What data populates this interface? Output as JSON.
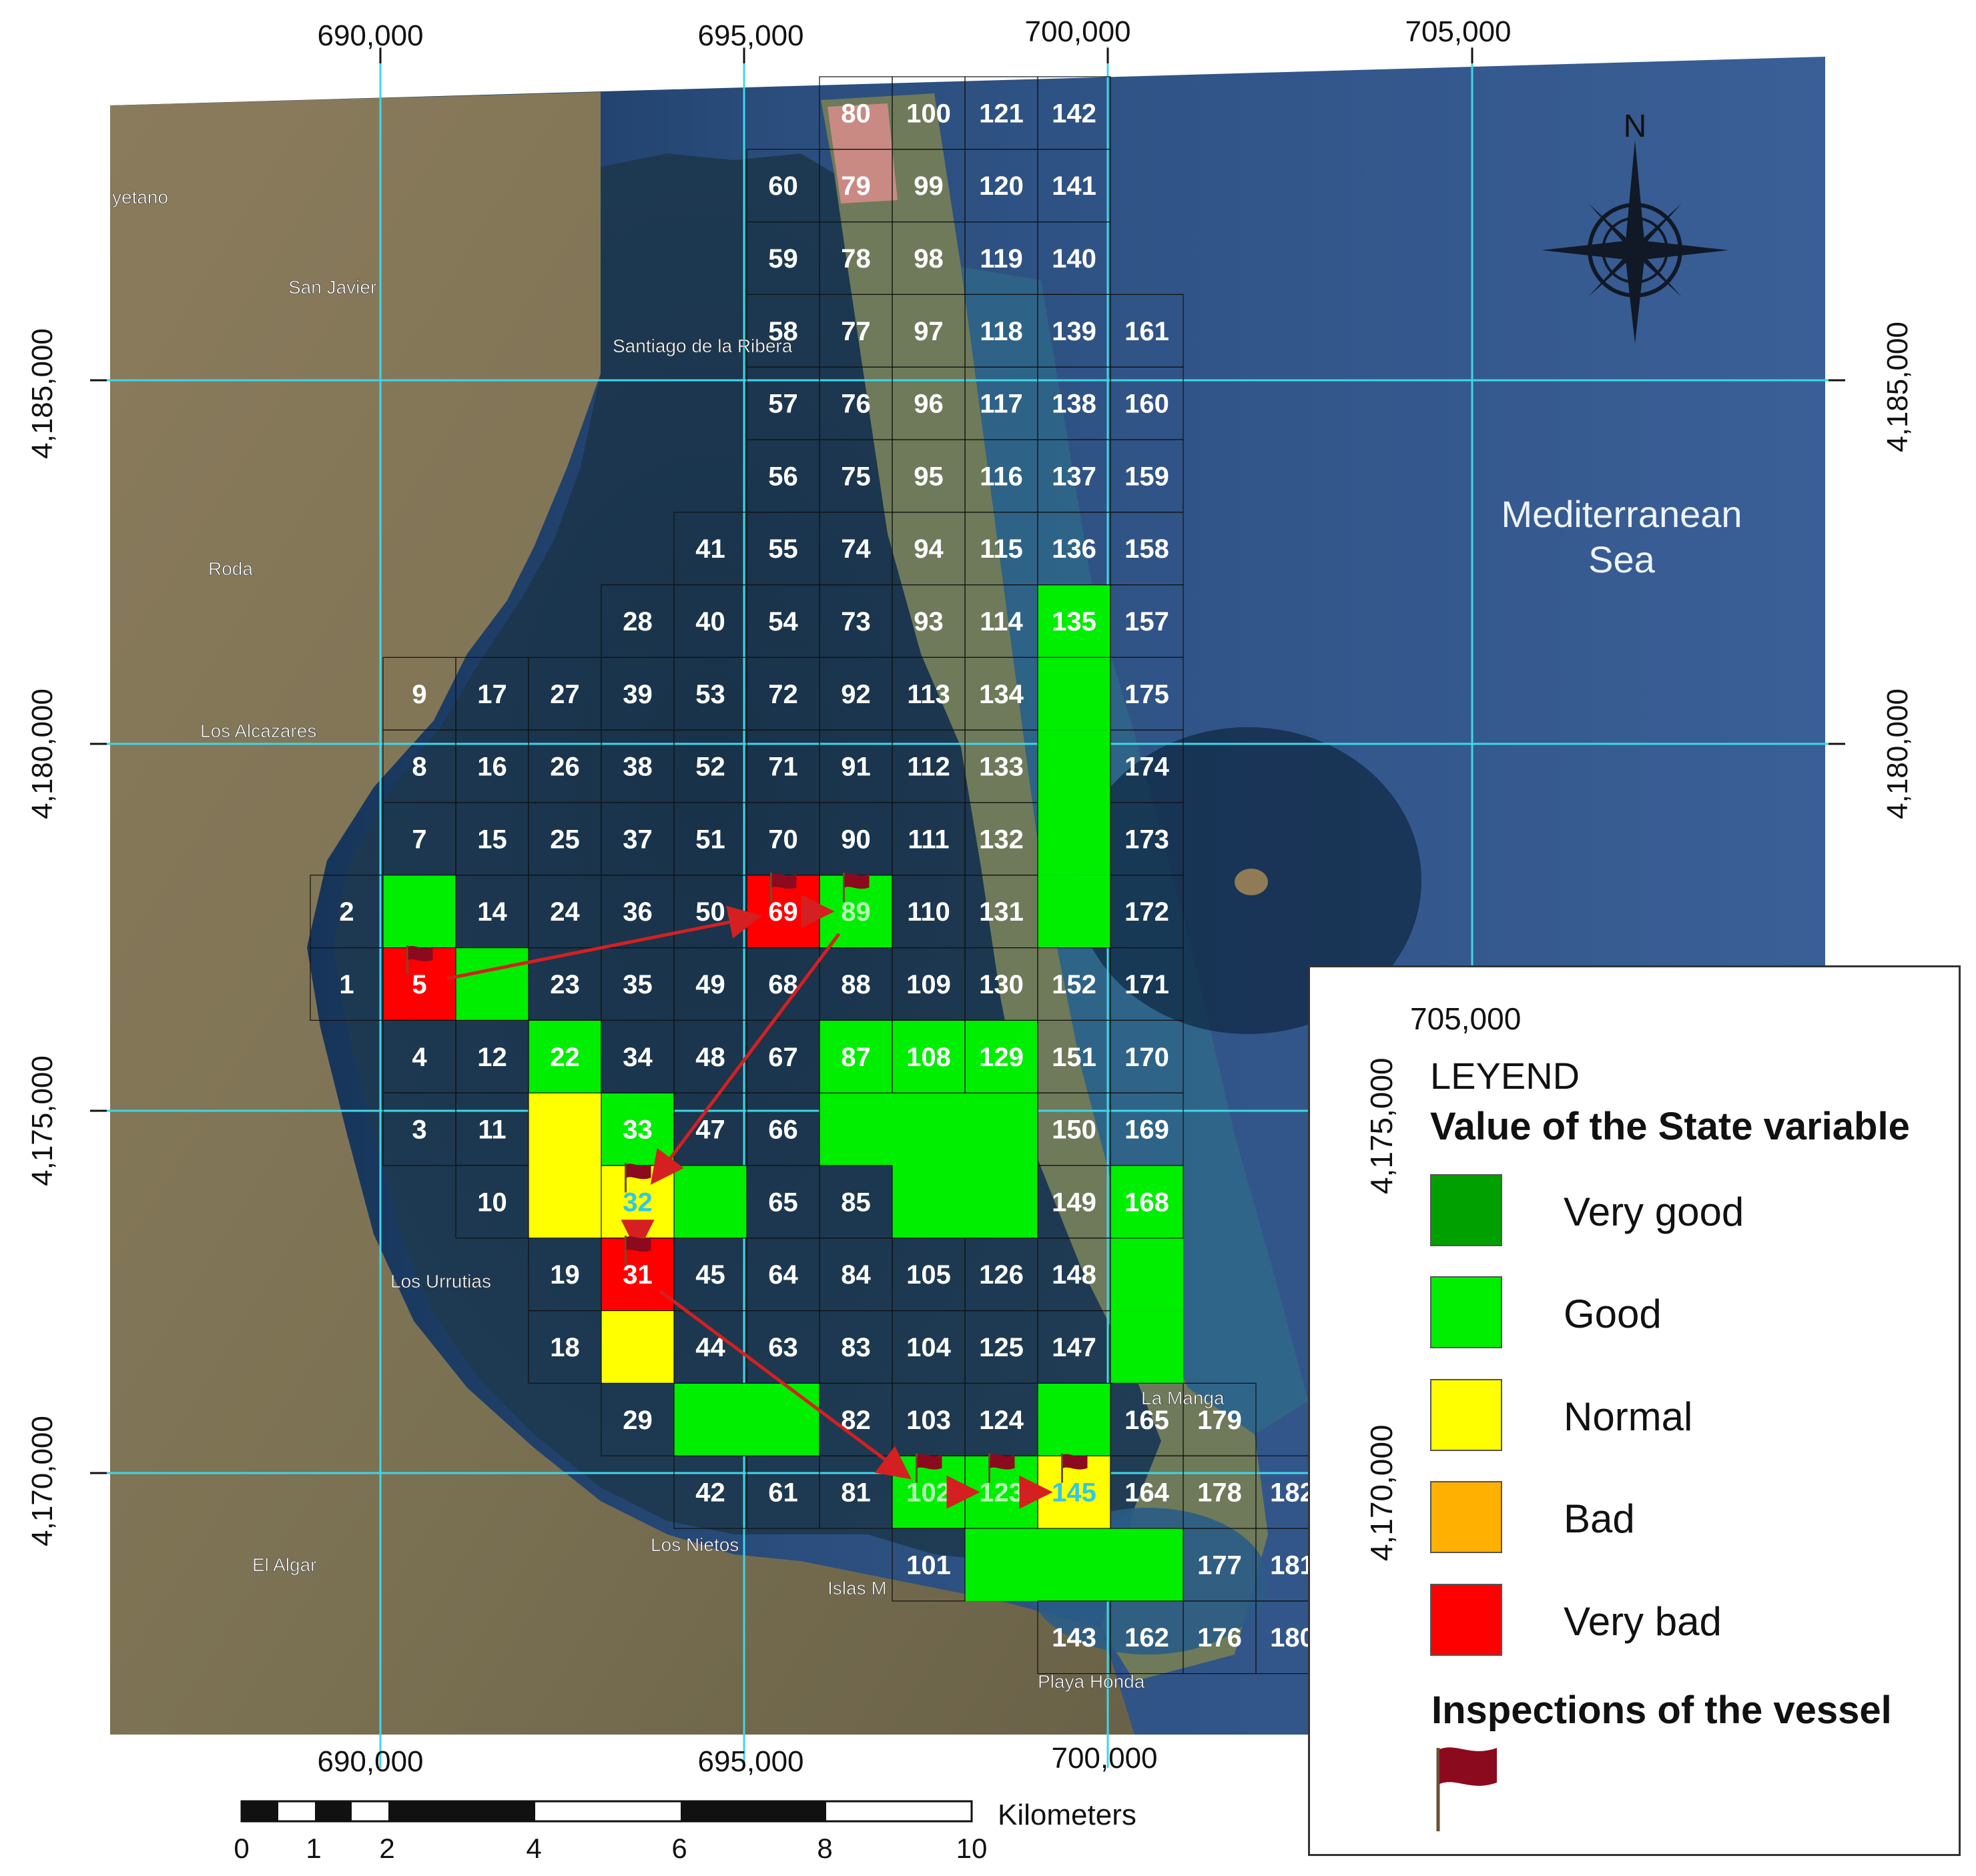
{
  "top_axis_labels": [
    "690,000",
    "695,000",
    "700,000",
    "705,000"
  ],
  "bottom_axis_labels": [
    "690,000",
    "695,000",
    "700,000"
  ],
  "left_axis_labels": [
    "4,185,000",
    "4,180,000",
    "4,175,000",
    "4,170,000"
  ],
  "right_axis_labels": [
    "4,185,000",
    "4,180,000"
  ],
  "place_names": [
    "yetano",
    "San Javier",
    "Roda",
    "Los Alcazares",
    "Santiago de la Ribera",
    "Los Urrutias",
    "El Algar",
    "Los Nietos",
    "Islas M",
    "Playa Honda",
    "La Manga"
  ],
  "sea_label_line1": "Mediterranean",
  "sea_label_line2": "Sea",
  "north_label": "N",
  "grid_numbers": [
    "80",
    "100",
    "121",
    "142",
    "60",
    "79",
    "99",
    "120",
    "141",
    "59",
    "78",
    "98",
    "119",
    "140",
    "58",
    "77",
    "97",
    "118",
    "139",
    "161",
    "57",
    "76",
    "96",
    "117",
    "138",
    "160",
    "56",
    "75",
    "95",
    "116",
    "137",
    "159",
    "41",
    "55",
    "74",
    "94",
    "115",
    "136",
    "158",
    "28",
    "40",
    "54",
    "73",
    "93",
    "114",
    "135",
    "157",
    "9",
    "17",
    "27",
    "39",
    "53",
    "72",
    "92",
    "113",
    "134",
    "175",
    "8",
    "16",
    "26",
    "38",
    "52",
    "71",
    "91",
    "112",
    "133",
    "174",
    "7",
    "15",
    "25",
    "37",
    "51",
    "70",
    "90",
    "111",
    "132",
    "173",
    "2",
    "14",
    "24",
    "36",
    "50",
    "69",
    "89",
    "110",
    "131",
    "172",
    "1",
    "5",
    "23",
    "35",
    "49",
    "68",
    "88",
    "109",
    "130",
    "152",
    "171",
    "4",
    "12",
    "22",
    "34",
    "48",
    "67",
    "87",
    "108",
    "129",
    "151",
    "170",
    "3",
    "11",
    "33",
    "47",
    "66",
    "150",
    "169",
    "10",
    "32",
    "65",
    "85",
    "149",
    "168",
    "19",
    "31",
    "45",
    "64",
    "84",
    "105",
    "126",
    "148",
    "18",
    "44",
    "63",
    "83",
    "104",
    "125",
    "147",
    "29",
    "82",
    "103",
    "124",
    "165",
    "179",
    "42",
    "61",
    "81",
    "102",
    "123",
    "145",
    "164",
    "178",
    "182",
    "101",
    "177",
    "181",
    "143",
    "162",
    "176",
    "180"
  ],
  "inspections_path": [
    "5",
    "69",
    "89",
    "32",
    "31",
    "102",
    "123",
    "145"
  ],
  "state_cells": {
    "good": [
      "6",
      "13",
      "89",
      "157",
      "175",
      "174",
      "173",
      "172",
      "22",
      "33",
      "46",
      "87",
      "108",
      "129",
      "106",
      "127",
      "128",
      "107",
      "86",
      "168",
      "167",
      "166",
      "43",
      "62",
      "146",
      "102",
      "123",
      "144",
      "163",
      "122",
      "164"
    ],
    "normal": [
      "21",
      "20",
      "32",
      "30",
      "145"
    ],
    "very_bad": [
      "5",
      "69",
      "31"
    ]
  },
  "colors": {
    "very_good": "#00a000",
    "good": "#00ee00",
    "normal": "#ffff00",
    "bad": "#ffb000",
    "very_bad": "#ff0000",
    "flag": "#8c0a1e",
    "arrow": "#d42020",
    "grid_line": "#3fd6e8"
  },
  "scale_bar": {
    "ticks": [
      "0",
      "1",
      "2",
      "4",
      "6",
      "8",
      "10"
    ],
    "unit": "Kilometers"
  },
  "legend": {
    "coord_x": "705,000",
    "coord_y1": "4,175,000",
    "coord_y2": "4,170,000",
    "title": "LEYEND",
    "subtitle": "Value of the State variable",
    "entries": [
      {
        "label": "Very good",
        "color": "#00a000"
      },
      {
        "label": "Good",
        "color": "#00ee00"
      },
      {
        "label": "Normal",
        "color": "#ffff00"
      },
      {
        "label": "Bad",
        "color": "#ffb000"
      },
      {
        "label": "Very bad",
        "color": "#ff0000"
      }
    ],
    "inspections_label": "Inspections of the vessel"
  }
}
